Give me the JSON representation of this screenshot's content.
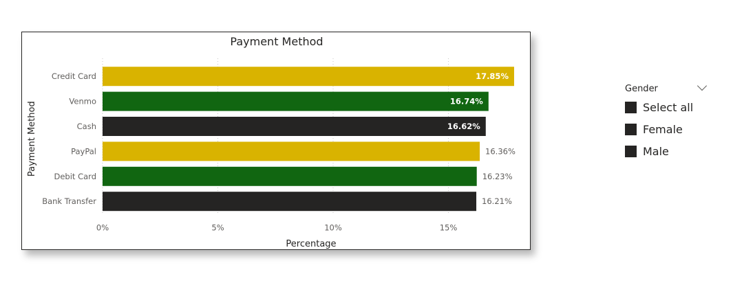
{
  "chart_data": {
    "type": "bar",
    "orientation": "horizontal",
    "title": "Payment Method",
    "xlabel": "Percentage",
    "ylabel": "Payment Method",
    "categories": [
      "Credit Card",
      "Venmo",
      "Cash",
      "PayPal",
      "Debit Card",
      "Bank Transfer"
    ],
    "values": [
      17.85,
      16.74,
      16.62,
      16.36,
      16.23,
      16.21
    ],
    "data_labels": [
      "17.85%",
      "16.74%",
      "16.62%",
      "16.36%",
      "16.23%",
      "16.21%"
    ],
    "bar_colors": [
      "#d9b300",
      "#116611",
      "#252423",
      "#d9b300",
      "#116611",
      "#252423"
    ],
    "xlim": [
      0,
      18
    ],
    "x_ticks": [
      0,
      5,
      10,
      15
    ],
    "x_tick_labels": [
      "0%",
      "5%",
      "10%",
      "15%"
    ],
    "grid": true
  },
  "slicer": {
    "title": "Gender",
    "items": [
      {
        "label": "Select all"
      },
      {
        "label": "Female"
      },
      {
        "label": "Male"
      }
    ],
    "checkbox_color": "#252423"
  }
}
